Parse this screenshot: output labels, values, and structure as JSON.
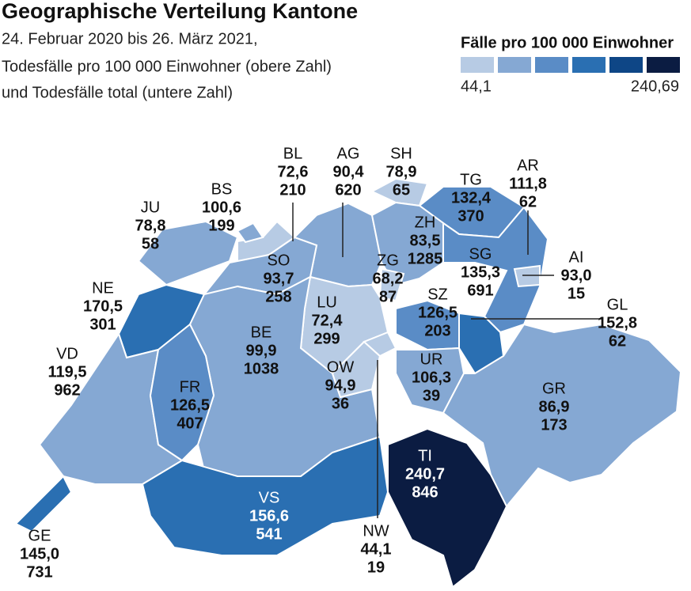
{
  "header": {
    "title": "Geographische Verteilung Kantone",
    "subtitle": [
      "24. Februar 2020 bis 26. März 2021,",
      "Todesfälle pro 100 000 Einwohner (obere Zahl)",
      "und Todesfälle total (untere Zahl)"
    ]
  },
  "legend": {
    "title": "Fälle pro 100 000 Einwohner",
    "colors": [
      "#b7cbe4",
      "#85a8d3",
      "#5a8cc6",
      "#2a6fb2",
      "#0e4686",
      "#0b1c42"
    ],
    "min_label": "44,1",
    "max_label": "240,69"
  },
  "cantons": [
    {
      "name": "BL",
      "rate": "72,6",
      "total": "210",
      "color": "#b7cbe4",
      "label_color": "#111"
    },
    {
      "name": "AG",
      "rate": "90,4",
      "total": "620",
      "color": "#85a8d3",
      "label_color": "#111"
    },
    {
      "name": "SH",
      "rate": "78,9",
      "total": "65",
      "color": "#b7cbe4",
      "label_color": "#111"
    },
    {
      "name": "TG",
      "rate": "132,4",
      "total": "370",
      "color": "#5a8cc6",
      "label_color": "#111"
    },
    {
      "name": "AR",
      "rate": "111,8",
      "total": "62",
      "color": "#85a8d3",
      "label_color": "#111"
    },
    {
      "name": "JU",
      "rate": "78,8",
      "total": "58",
      "color": "#85a8d3",
      "label_color": "#111"
    },
    {
      "name": "BS",
      "rate": "100,6",
      "total": "199",
      "color": "#85a8d3",
      "label_color": "#111"
    },
    {
      "name": "ZH",
      "rate": "83,5",
      "total": "1285",
      "color": "#85a8d3",
      "label_color": "#111"
    },
    {
      "name": "SO",
      "rate": "93,7",
      "total": "258",
      "color": "#85a8d3",
      "label_color": "#111"
    },
    {
      "name": "ZG",
      "rate": "68,2",
      "total": "87",
      "color": "#b7cbe4",
      "label_color": "#111"
    },
    {
      "name": "SG",
      "rate": "135,3",
      "total": "691",
      "color": "#5a8cc6",
      "label_color": "#111"
    },
    {
      "name": "AI",
      "rate": "93,0",
      "total": "15",
      "color": "#b7cbe4",
      "label_color": "#111"
    },
    {
      "name": "NE",
      "rate": "170,5",
      "total": "301",
      "color": "#2a6fb2",
      "label_color": "#111"
    },
    {
      "name": "LU",
      "rate": "72,4",
      "total": "299",
      "color": "#b7cbe4",
      "label_color": "#111"
    },
    {
      "name": "SZ",
      "rate": "126,5",
      "total": "203",
      "color": "#5a8cc6",
      "label_color": "#111"
    },
    {
      "name": "GL",
      "rate": "152,8",
      "total": "62",
      "color": "#2a6fb2",
      "label_color": "#111"
    },
    {
      "name": "BE",
      "rate": "99,9",
      "total": "1038",
      "color": "#85a8d3",
      "label_color": "#111"
    },
    {
      "name": "VD",
      "rate": "119,5",
      "total": "962",
      "color": "#85a8d3",
      "label_color": "#111"
    },
    {
      "name": "UR",
      "rate": "106,3",
      "total": "39",
      "color": "#85a8d3",
      "label_color": "#111"
    },
    {
      "name": "OW",
      "rate": "94,9",
      "total": "36",
      "color": "#b7cbe4",
      "label_color": "#111"
    },
    {
      "name": "FR",
      "rate": "126,5",
      "total": "407",
      "color": "#5a8cc6",
      "label_color": "#111"
    },
    {
      "name": "GR",
      "rate": "86,9",
      "total": "173",
      "color": "#85a8d3",
      "label_color": "#111"
    },
    {
      "name": "TI",
      "rate": "240,7",
      "total": "846",
      "color": "#0b1c42",
      "label_color": "#fff"
    },
    {
      "name": "VS",
      "rate": "156,6",
      "total": "541",
      "color": "#2a6fb2",
      "label_color": "#fff"
    },
    {
      "name": "NW",
      "rate": "44,1",
      "total": "19",
      "color": "#b7cbe4",
      "label_color": "#111"
    },
    {
      "name": "GE",
      "rate": "145,0",
      "total": "731",
      "color": "#2a6fb2",
      "label_color": "#111"
    }
  ]
}
